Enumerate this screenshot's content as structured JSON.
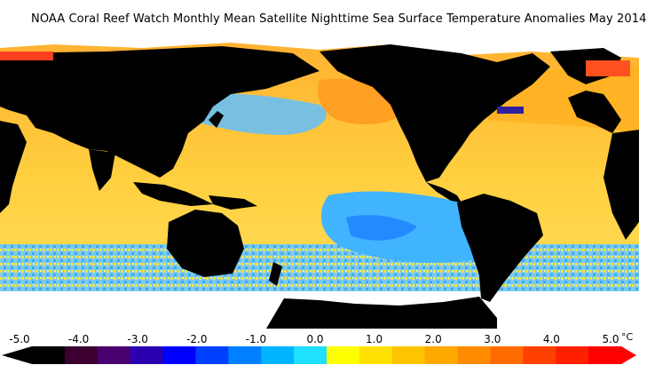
{
  "title": "NOAA Coral Reef Watch Monthly Mean Satellite Nighttime Sea Surface Temperature Anomalies    May 2014",
  "colorbar": {
    "tick_labels": [
      "-5.0",
      "-4.0",
      "-3.0",
      "-2.0",
      "-1.0",
      "0.0",
      "1.0",
      "2.0",
      "3.0",
      "4.0",
      "5.0"
    ],
    "unit": "°C",
    "colors": [
      "#000000",
      "#3b0030",
      "#4b0070",
      "#2a00b0",
      "#0000ff",
      "#0040ff",
      "#0080ff",
      "#00b4ff",
      "#20e0ff",
      "#ffff00",
      "#ffe000",
      "#ffc400",
      "#ffa800",
      "#ff8c00",
      "#ff6a00",
      "#ff4000",
      "#ff2000",
      "#ff0000"
    ]
  },
  "map": {
    "legend_colors": {
      "land": "#000000",
      "ice": "#ffffff",
      "warm": "#ffc030",
      "cool": "#40b0ff"
    }
  }
}
